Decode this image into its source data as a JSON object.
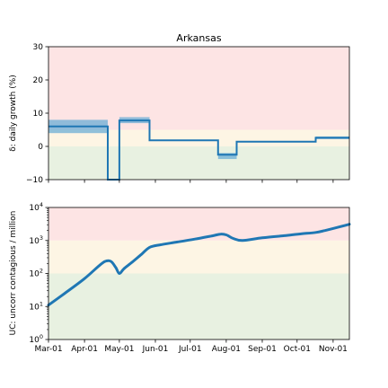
{
  "chart_data": [
    {
      "type": "line",
      "title": "Arkansas",
      "ylabel": "δ: daily growth (%)",
      "xlabel": "",
      "ylim": [
        -10,
        30
      ],
      "yscale": "linear",
      "yticks": [
        -10,
        0,
        10,
        20,
        30
      ],
      "ytick_labels": [
        "−10",
        "0",
        "10",
        "20",
        "30"
      ],
      "zones": [
        {
          "from": -10,
          "to": 0,
          "color": "#e8f1e1"
        },
        {
          "from": 0,
          "to": 5,
          "color": "#fdf5e4"
        },
        {
          "from": 5,
          "to": 30,
          "color": "#fde4e4"
        }
      ],
      "line_color": "#1f77b4",
      "band_color": "#6baed6",
      "series": [
        {
          "x": [
            "2020-03-01",
            "2020-04-21",
            "2020-04-21",
            "2020-05-01",
            "2020-05-01",
            "2020-05-27",
            "2020-05-27",
            "2020-07-25",
            "2020-07-25",
            "2020-08-10",
            "2020-08-10",
            "2020-10-17",
            "2020-10-17",
            "2020-11-15"
          ],
          "y": [
            6,
            6,
            -10,
            -10,
            7.8,
            7.8,
            1.8,
            1.8,
            -2.5,
            -2.5,
            1.4,
            1.4,
            2.6,
            2.6
          ],
          "band": [
            {
              "x0": "2020-03-01",
              "x1": "2020-04-21",
              "lo": 4,
              "hi": 8
            },
            {
              "x0": "2020-05-01",
              "x1": "2020-05-27",
              "lo": 7,
              "hi": 8.8
            },
            {
              "x0": "2020-07-25",
              "x1": "2020-08-10",
              "lo": -3.8,
              "hi": -2
            },
            {
              "x0": "2020-10-17",
              "x1": "2020-11-15",
              "lo": 2.2,
              "hi": 3.0
            }
          ]
        }
      ]
    },
    {
      "type": "line",
      "title": "",
      "ylabel": "UC: uncorr contagious / million",
      "xlabel": "",
      "yscale": "log",
      "ylim": [
        1,
        10000
      ],
      "yticks": [
        1,
        10,
        100,
        1000,
        10000
      ],
      "ytick_labels": [
        [
          "10",
          "0"
        ],
        [
          "10",
          "1"
        ],
        [
          "10",
          "2"
        ],
        [
          "10",
          "3"
        ],
        [
          "10",
          "4"
        ]
      ],
      "zones": [
        {
          "from": 1,
          "to": 100,
          "color": "#e8f1e1"
        },
        {
          "from": 100,
          "to": 1000,
          "color": "#fdf5e4"
        },
        {
          "from": 1000,
          "to": 10000,
          "color": "#fde4e4"
        }
      ],
      "line_color": "#1f77b4",
      "xticks": [
        "2020-03-01",
        "2020-04-01",
        "2020-05-01",
        "2020-06-01",
        "2020-07-01",
        "2020-08-01",
        "2020-09-01",
        "2020-10-01",
        "2020-11-01"
      ],
      "xtick_labels": [
        "Mar-01",
        "Apr-01",
        "May-01",
        "Jun-01",
        "Jul-01",
        "Aug-01",
        "Sep-01",
        "Oct-01",
        "Nov-01"
      ],
      "xlim": [
        "2020-03-01",
        "2020-11-15"
      ],
      "series": [
        {
          "x": [
            "2020-03-01",
            "2020-03-15",
            "2020-04-01",
            "2020-04-15",
            "2020-04-20",
            "2020-04-24",
            "2020-04-28",
            "2020-05-01",
            "2020-05-05",
            "2020-05-12",
            "2020-05-20",
            "2020-05-27",
            "2020-06-05",
            "2020-06-20",
            "2020-07-05",
            "2020-07-20",
            "2020-07-27",
            "2020-08-01",
            "2020-08-07",
            "2020-08-15",
            "2020-09-01",
            "2020-09-20",
            "2020-10-05",
            "2020-10-17",
            "2020-10-25",
            "2020-11-05",
            "2020-11-15"
          ],
          "y": [
            11,
            25,
            70,
            190,
            240,
            230,
            150,
            100,
            140,
            220,
            380,
            620,
            740,
            900,
            1100,
            1380,
            1560,
            1480,
            1150,
            1000,
            1200,
            1400,
            1600,
            1750,
            2000,
            2500,
            3100
          ]
        }
      ]
    }
  ]
}
